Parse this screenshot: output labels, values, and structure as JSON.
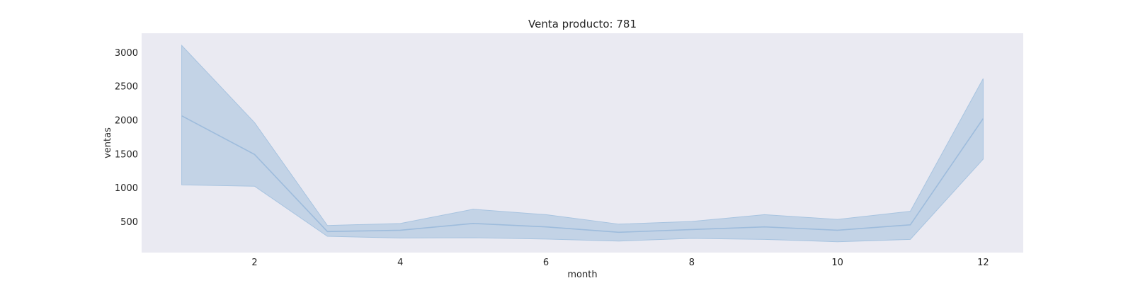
{
  "chart_data": {
    "type": "line",
    "title": "Venta producto: 781",
    "xlabel": "month",
    "ylabel": "ventas",
    "xlim": [
      0.45,
      12.55
    ],
    "ylim": [
      40,
      3280
    ],
    "xticks": [
      2,
      4,
      6,
      8,
      10,
      12
    ],
    "yticks": [
      500,
      1000,
      1500,
      2000,
      2500,
      3000
    ],
    "grid": false,
    "series": [
      {
        "x": [
          1,
          2,
          3,
          4,
          5,
          6,
          7,
          8,
          9,
          10,
          11,
          12
        ],
        "values": [
          2060,
          1490,
          350,
          370,
          470,
          420,
          340,
          380,
          420,
          370,
          450,
          2020
        ],
        "lower": [
          1040,
          1020,
          280,
          255,
          260,
          240,
          210,
          250,
          235,
          200,
          235,
          1420
        ],
        "upper": [
          3100,
          1960,
          440,
          470,
          680,
          600,
          460,
          500,
          600,
          530,
          650,
          2610
        ]
      }
    ],
    "colors": {
      "background": "#eaeaf2",
      "line": "#9ebcdc",
      "band": "#a3bfdc",
      "band_edge": "#a8c4e0",
      "text": "#262626"
    }
  }
}
